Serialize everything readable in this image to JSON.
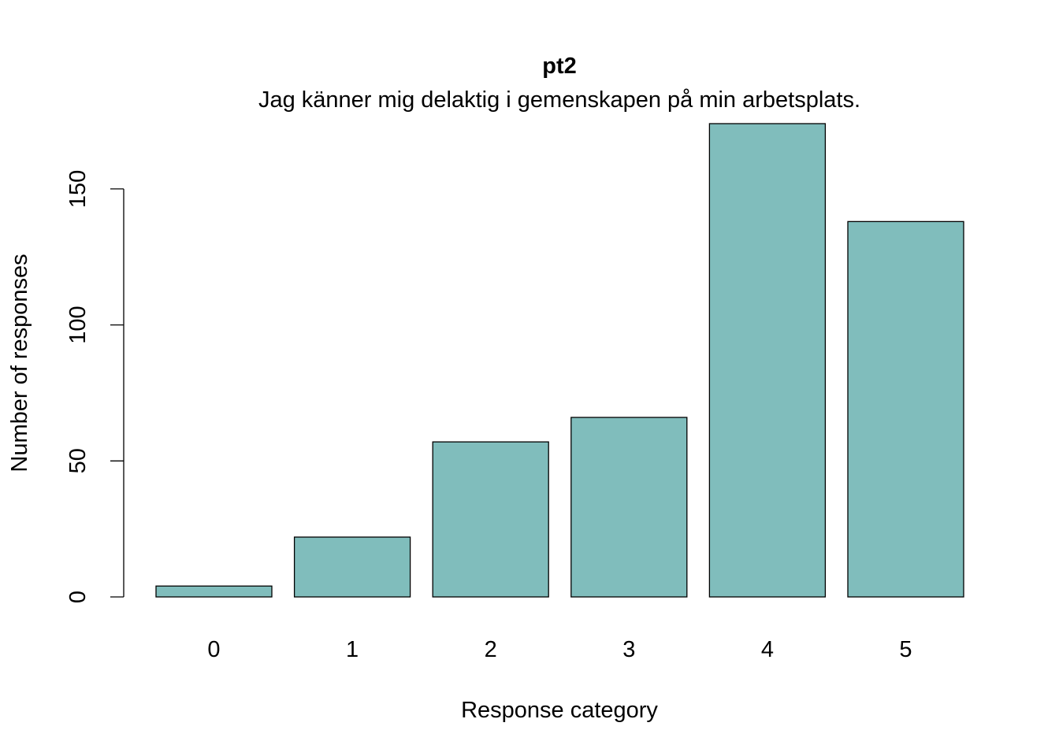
{
  "chart_data": {
    "type": "bar",
    "title": "pt2",
    "subtitle": "Jag känner mig delaktig i gemenskapen på min arbetsplats.",
    "xlabel": "Response category",
    "ylabel": "Number of responses",
    "categories": [
      "0",
      "1",
      "2",
      "3",
      "4",
      "5"
    ],
    "values": [
      4,
      22,
      57,
      66,
      174,
      138
    ],
    "ylim": [
      0,
      174
    ],
    "yticks": [
      "0",
      "50",
      "100",
      "150"
    ],
    "bar_color": "#80BDBC",
    "grid": false,
    "legend": "none"
  }
}
